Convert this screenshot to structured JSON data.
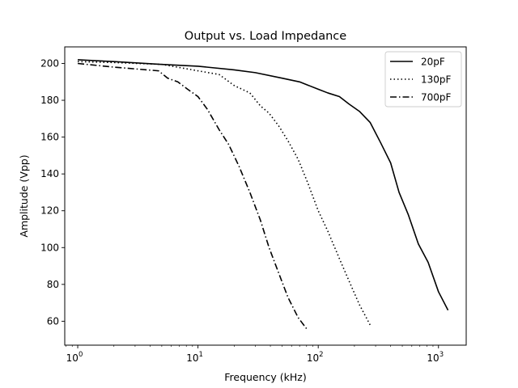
{
  "chart_data": {
    "type": "line",
    "title": "Output vs. Load Impedance",
    "xlabel": "Frequency (kHz)",
    "ylabel": "Amplitude (Vpp)",
    "xscale": "log",
    "xlim": [
      0.78,
      1700
    ],
    "ylim": [
      47,
      209
    ],
    "grid": false,
    "legend_position": "top-right",
    "x_ticks": [
      {
        "base": "10",
        "exp": "0",
        "value": 1
      },
      {
        "base": "10",
        "exp": "1",
        "value": 10
      },
      {
        "base": "10",
        "exp": "2",
        "value": 100
      },
      {
        "base": "10",
        "exp": "3",
        "value": 1000
      }
    ],
    "y_ticks": [
      {
        "label": "60",
        "value": 60
      },
      {
        "label": "80",
        "value": 80
      },
      {
        "label": "100",
        "value": 100
      },
      {
        "label": "120",
        "value": 120
      },
      {
        "label": "140",
        "value": 140
      },
      {
        "label": "160",
        "value": 160
      },
      {
        "label": "180",
        "value": 180
      },
      {
        "label": "200",
        "value": 200
      }
    ],
    "series": [
      {
        "name": "20pF",
        "color": "#000000",
        "dash": "solid",
        "x": [
          1,
          2,
          5,
          10,
          20,
          30,
          50,
          70,
          100,
          120,
          150,
          180,
          220,
          270,
          330,
          400,
          470,
          560,
          680,
          820,
          1000,
          1200
        ],
        "y": [
          202,
          201,
          199.5,
          198.5,
          196.5,
          195,
          192,
          190,
          186,
          184,
          182,
          178,
          174,
          168,
          157,
          146,
          130,
          118,
          102,
          92,
          76,
          66
        ]
      },
      {
        "name": "130pF",
        "color": "#000000",
        "dash": "dotted",
        "x": [
          1,
          2,
          5,
          10,
          15,
          20,
          27,
          33,
          39,
          47,
          56,
          68,
          82,
          100,
          120,
          150,
          180,
          220,
          270
        ],
        "y": [
          201,
          200.5,
          199.5,
          196,
          194,
          188,
          184,
          177,
          173,
          166,
          158,
          148,
          135,
          120,
          109,
          94,
          82,
          69,
          58
        ]
      },
      {
        "name": "700pF",
        "color": "#000000",
        "dash": "dashdot",
        "x": [
          1,
          2,
          4.7,
          5.6,
          6.8,
          8.2,
          10,
          12,
          15,
          18,
          22,
          27,
          33,
          39,
          47,
          56,
          68,
          82
        ],
        "y": [
          200,
          198,
          196,
          192,
          190,
          186,
          182,
          175,
          164,
          156,
          144,
          130,
          115,
          100,
          86,
          73,
          62,
          55
        ]
      }
    ]
  }
}
